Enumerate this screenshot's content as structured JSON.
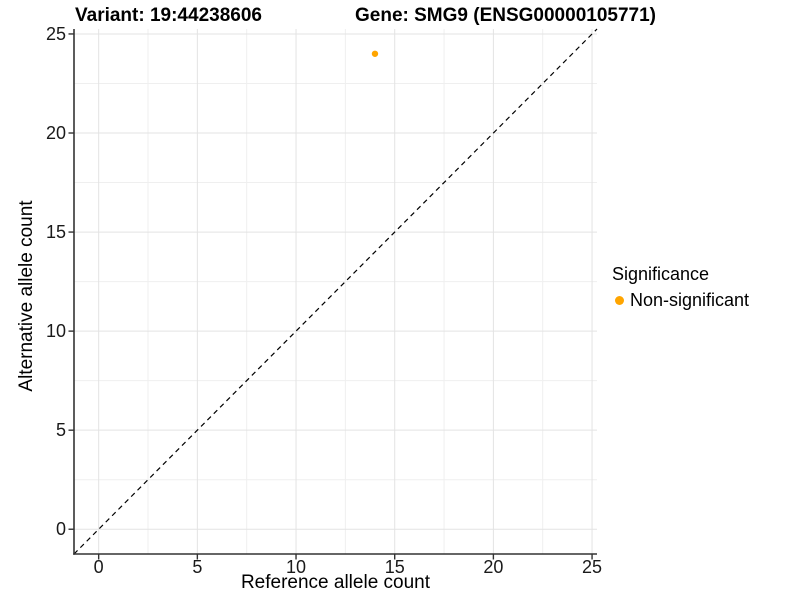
{
  "titles": {
    "variant": "Variant: 19:44238606",
    "gene": "Gene: SMG9 (ENSG00000105771)"
  },
  "chart_data": {
    "type": "scatter",
    "title_left": "Variant: 19:44238606",
    "title_right": "Gene: SMG9 (ENSG00000105771)",
    "xlabel": "Reference allele count",
    "ylabel": "Alternative allele count",
    "xlim": [
      -1.25,
      25.25
    ],
    "ylim": [
      -1.25,
      25.25
    ],
    "x_ticks": [
      0,
      5,
      10,
      15,
      20,
      25
    ],
    "y_ticks": [
      0,
      5,
      10,
      15,
      20,
      25
    ],
    "x_minor_ticks": [
      2.5,
      7.5,
      12.5,
      17.5,
      22.5
    ],
    "y_minor_ticks": [
      2.5,
      7.5,
      12.5,
      17.5,
      22.5
    ],
    "grid": true,
    "points": [
      {
        "x": 14,
        "y": 24,
        "series": "Non-significant",
        "color": "#FFA500"
      }
    ],
    "reference_line": {
      "kind": "identity y=x",
      "style": "dashed",
      "color": "#000000"
    },
    "legend": {
      "title": "Significance",
      "position": "right",
      "entries": [
        {
          "label": "Non-significant",
          "color": "#FFA500"
        }
      ]
    }
  },
  "style_colors": {
    "grid_major": "#e3e3e3",
    "grid_minor": "#efefef",
    "axis_line": "#333333",
    "tick_text": "#1a1a1a",
    "point_orange": "#FFA500"
  }
}
